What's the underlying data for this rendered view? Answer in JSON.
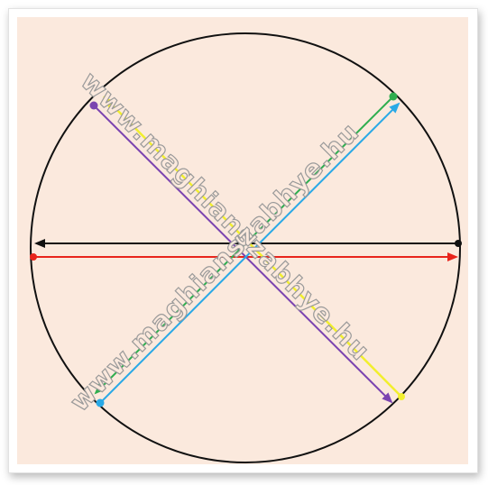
{
  "watermark": {
    "text": "www.maghianszabhye.hu"
  },
  "colors": {
    "background": "#fbe9dd",
    "circle": "#111111",
    "black": "#111111",
    "red": "#e8241c",
    "purple": "#7b44b0",
    "yellow": "#f2ef2e",
    "green": "#2fae4f",
    "blue": "#2aa9e6"
  },
  "diagram": {
    "shape": "circle",
    "chords": [
      {
        "name": "black",
        "from_dot": "right",
        "arrow_to": "left"
      },
      {
        "name": "red",
        "from_dot": "left",
        "arrow_to": "right"
      },
      {
        "name": "purple",
        "from_dot": "top-left",
        "arrow_to": "bottom-right"
      },
      {
        "name": "yellow",
        "from_dot": "bottom-right",
        "arrow_to": "top-left"
      },
      {
        "name": "green",
        "from_dot": "top-right",
        "arrow_to": "bottom-left"
      },
      {
        "name": "blue",
        "from_dot": "bottom-left",
        "arrow_to": "top-right"
      }
    ]
  }
}
